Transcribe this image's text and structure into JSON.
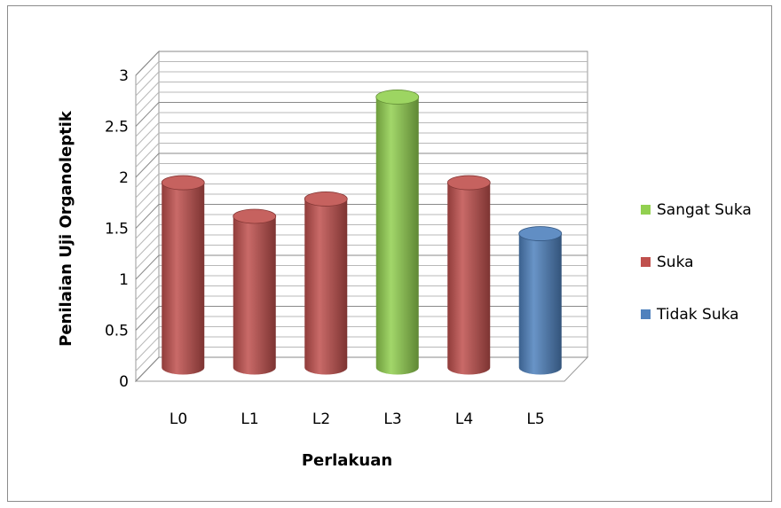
{
  "chart_data": {
    "type": "bar",
    "categories": [
      "L0",
      "L1",
      "L2",
      "L3",
      "L4",
      "L5"
    ],
    "values": [
      1.83,
      1.5,
      1.67,
      2.67,
      1.83,
      1.33
    ],
    "value_class": [
      "Suka",
      "Suka",
      "Suka",
      "Sangat Suka",
      "Suka",
      "Tidak Suka"
    ],
    "xlabel": "Perlakuan",
    "ylabel": "Penilaian Uji Organoleptik",
    "ylim": [
      0,
      3
    ],
    "yticks": [
      "0",
      "0.5",
      "1",
      "1.5",
      "2",
      "2.5",
      "3"
    ],
    "grid": true,
    "style": "3d-cylinder",
    "legend": {
      "position": "right",
      "entries": [
        {
          "name": "Sangat Suka",
          "color": "#92d050"
        },
        {
          "name": "Suka",
          "color": "#c0504d"
        },
        {
          "name": "Tidak Suka",
          "color": "#4f81bd"
        }
      ]
    }
  }
}
